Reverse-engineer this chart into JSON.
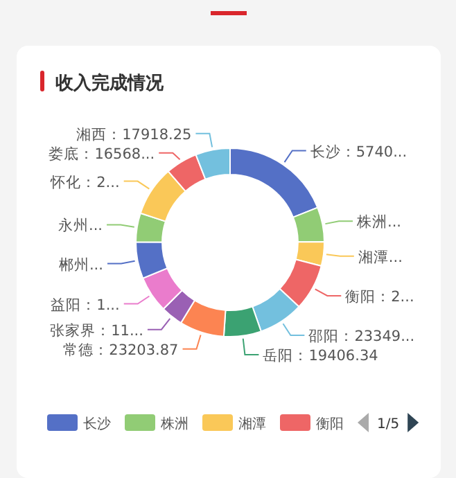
{
  "chart_data": {
    "type": "donut",
    "title": "收入完成情况",
    "categories": [
      "长沙",
      "株洲",
      "湘潭",
      "衡阳",
      "邵阳",
      "岳阳",
      "常德",
      "张家界",
      "益阳",
      "郴州",
      "永州",
      "怀化",
      "娄底",
      "湘西"
    ],
    "values": [
      57400,
      18000,
      12500,
      24000,
      23349,
      19406.34,
      23203.87,
      11500,
      19000,
      19000,
      15000,
      26000,
      16568,
      17918.25
    ],
    "value_labels": [
      "：5740...",
      "...",
      "...",
      "：2...",
      "：23349...",
      "：19406.34",
      "：23203.87",
      "：11...",
      "：1...",
      "...",
      "...",
      "：2...",
      "：16568...",
      "：17918.25"
    ],
    "colors": [
      "#5470c6",
      "#91cc75",
      "#fac858",
      "#ee6666",
      "#73c0de",
      "#3ba272",
      "#fc8452",
      "#9a60b4",
      "#ea7ccc",
      "#5470c6",
      "#91cc75",
      "#fac858",
      "#ee6666",
      "#73c0de"
    ],
    "legend": "bottom",
    "annotations": [
      "1/5"
    ]
  }
}
